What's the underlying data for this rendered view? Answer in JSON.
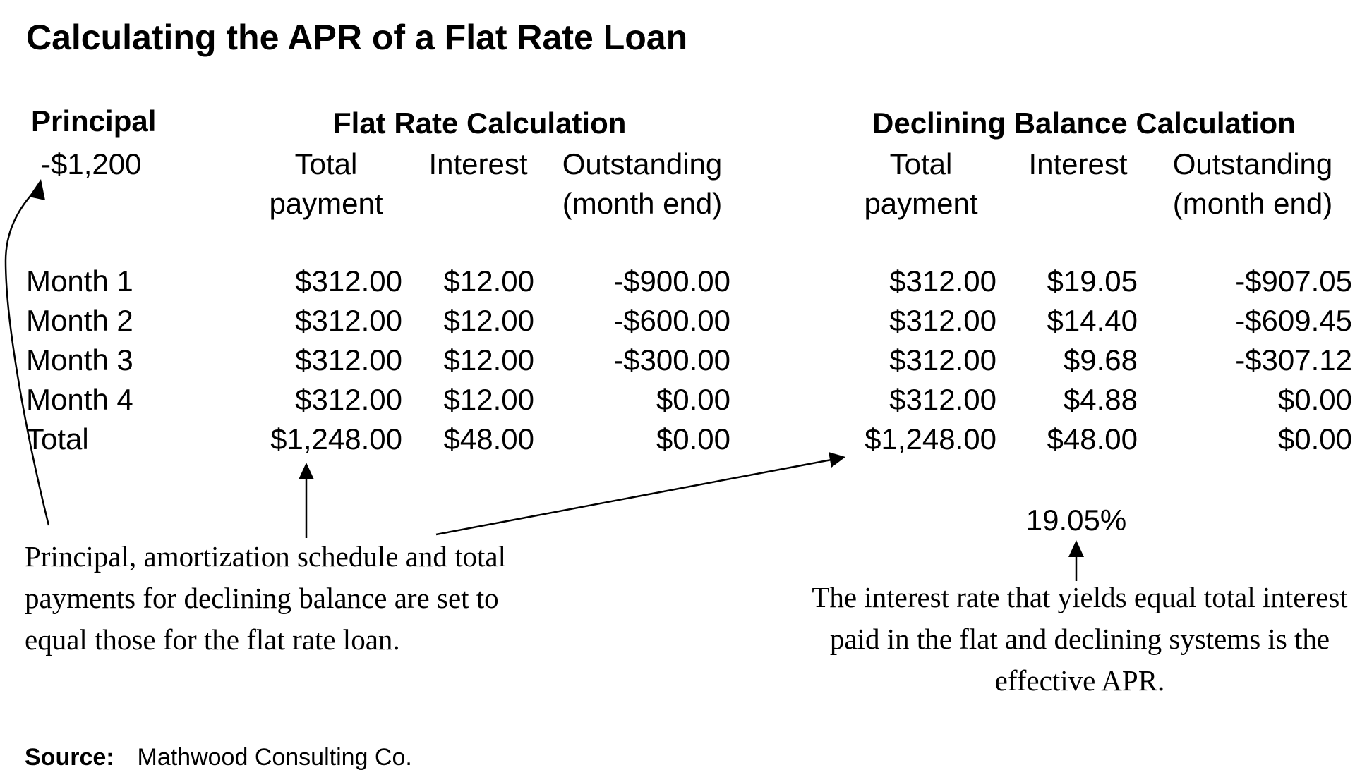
{
  "title": "Calculating the APR of a Flat Rate Loan",
  "principal": {
    "label": "Principal",
    "value": "-$1,200"
  },
  "flat": {
    "heading": "Flat Rate Calculation",
    "columns": {
      "total": [
        "Total",
        "payment"
      ],
      "interest": [
        "Interest"
      ],
      "outstanding": [
        "Outstanding",
        "(month end)"
      ]
    },
    "rows": [
      {
        "label": "Month 1",
        "total": "$312.00",
        "interest": "$12.00",
        "outstanding": "-$900.00"
      },
      {
        "label": "Month 2",
        "total": "$312.00",
        "interest": "$12.00",
        "outstanding": "-$600.00"
      },
      {
        "label": "Month 3",
        "total": "$312.00",
        "interest": "$12.00",
        "outstanding": "-$300.00"
      },
      {
        "label": "Month 4",
        "total": "$312.00",
        "interest": "$12.00",
        "outstanding": "$0.00"
      },
      {
        "label": "Total",
        "total": "$1,248.00",
        "interest": "$48.00",
        "outstanding": "$0.00"
      }
    ]
  },
  "declining": {
    "heading": "Declining Balance Calculation",
    "columns": {
      "total": [
        "Total",
        "payment"
      ],
      "interest": [
        "Interest"
      ],
      "outstanding": [
        "Outstanding",
        "(month end)"
      ]
    },
    "rows": [
      {
        "total": "$312.00",
        "interest": "$19.05",
        "outstanding": "-$907.05"
      },
      {
        "total": "$312.00",
        "interest": "$14.40",
        "outstanding": "-$609.45"
      },
      {
        "total": "$312.00",
        "interest": "$9.68",
        "outstanding": "-$307.12"
      },
      {
        "total": "$312.00",
        "interest": "$4.88",
        "outstanding": "$0.00"
      },
      {
        "total": "$1,248.00",
        "interest": "$48.00",
        "outstanding": "$0.00"
      }
    ]
  },
  "apr": "19.05%",
  "notes": {
    "left": "Principal, amortization schedule and total payments for declining balance are set to equal those for the flat rate loan.",
    "right": "The interest rate that yields equal total interest paid in the flat and declining systems is the effective APR."
  },
  "source": {
    "label": "Source:",
    "text": "Mathwood Consulting Co."
  }
}
